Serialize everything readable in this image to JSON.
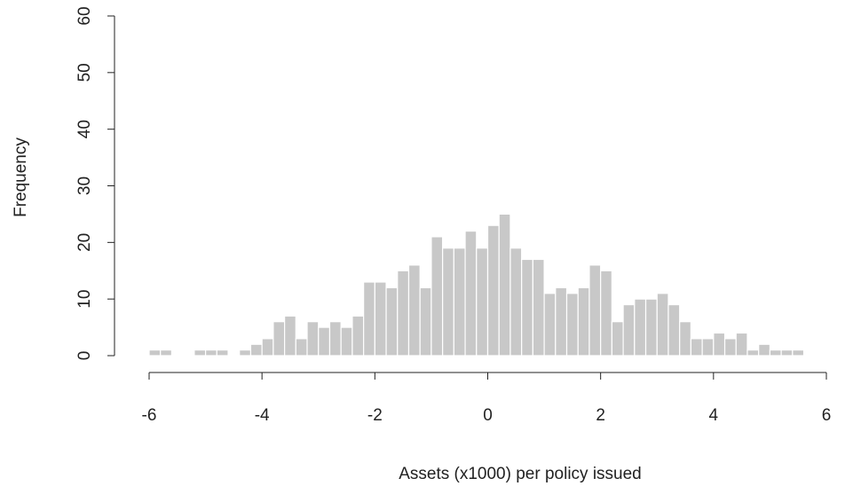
{
  "chart_data": {
    "type": "histogram",
    "x_label": "Assets (x1000) per policy issued",
    "y_label": "Frequency",
    "color": "#c8c8c8",
    "bins": [
      -6,
      -5.8,
      -5.6,
      -5.4,
      -5.2,
      -5,
      -4.8,
      -4.6,
      -4.4,
      -4.2,
      -4,
      -3.8,
      -3.6,
      -3.4,
      -3.2,
      -3,
      -2.8,
      -2.6,
      -2.4,
      -2.2,
      -2,
      -1.8,
      -1.6,
      -1.4,
      -1.2,
      -1,
      -0.8,
      -0.6,
      -0.4,
      -0.2,
      0,
      0.2,
      0.4,
      0.6,
      0.8,
      1,
      1.2,
      1.4,
      1.6,
      1.8,
      2,
      2.2,
      2.4,
      2.6,
      2.8,
      3,
      3.2,
      3.4,
      3.6,
      3.8,
      4,
      4.2,
      4.4,
      4.6,
      4.8,
      5,
      5.2,
      5.4,
      5.6,
      5.8,
      6
    ],
    "values": [
      1,
      1,
      0,
      0,
      1,
      1,
      1,
      0,
      1,
      2,
      3,
      6,
      7,
      3,
      6,
      5,
      6,
      5,
      7,
      13,
      13,
      12,
      15,
      16,
      12,
      21,
      19,
      19,
      22,
      19,
      23,
      25,
      19,
      17,
      17,
      11,
      12,
      11,
      12,
      16,
      15,
      6,
      9,
      10,
      10,
      11,
      9,
      6,
      3,
      3,
      4,
      3,
      4,
      1,
      2,
      1,
      1,
      1,
      0,
      0
    ],
    "xlim": [
      -6,
      6
    ],
    "xticks": [
      -6,
      -4,
      -2,
      0,
      2,
      4,
      6
    ],
    "ylim": [
      0,
      60
    ],
    "yticks": [
      0,
      10,
      20,
      30,
      40,
      50,
      60
    ]
  }
}
